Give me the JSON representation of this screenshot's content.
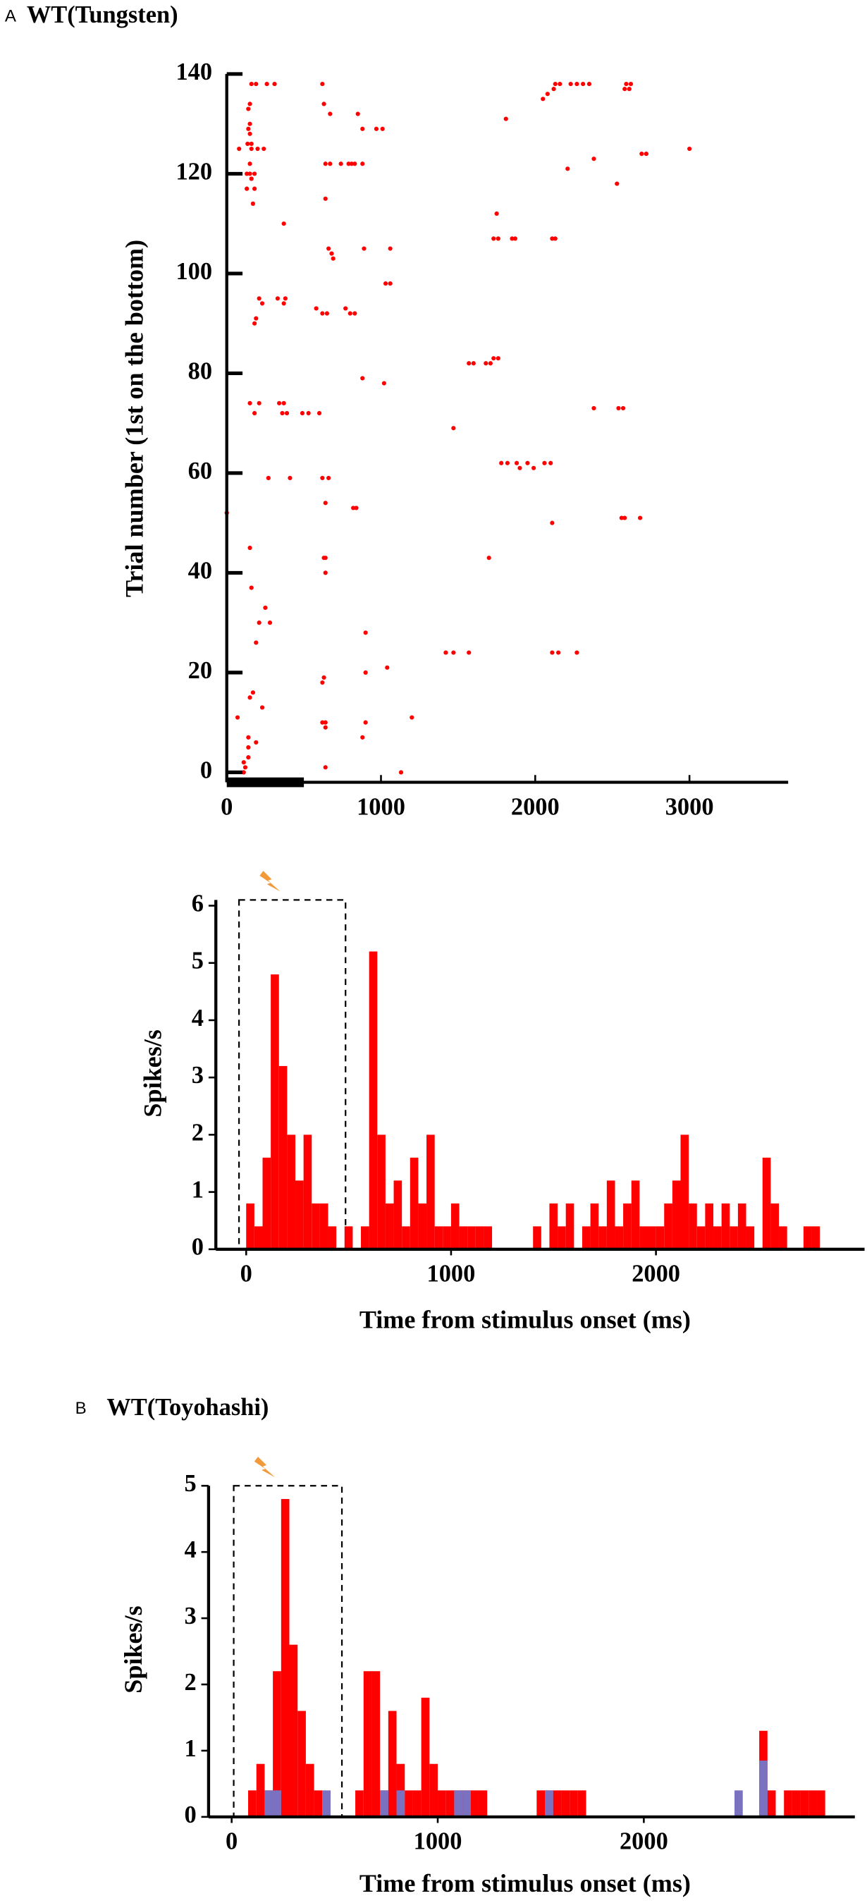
{
  "chart_data": [
    {
      "type": "scatter",
      "panel": "A",
      "title": "WT(Tungsten)",
      "y_label": "Trial number (1st on the bottom)",
      "color": "#ff0000",
      "xlim": [
        0,
        3640
      ],
      "ylim": [
        -2,
        140
      ],
      "xticks": [
        0,
        1000,
        2000,
        3000
      ],
      "yticks": [
        0,
        20,
        40,
        60,
        80,
        100,
        120,
        140
      ],
      "stimulus_window": [
        0,
        500
      ],
      "x": [
        160,
        190,
        260,
        310,
        620,
        2130,
        2160,
        2230,
        2270,
        2310,
        2350,
        2590,
        2620,
        2120,
        2580,
        2610,
        2080,
        2050,
        150,
        630,
        140,
        670,
        850,
        1810,
        150,
        140,
        880,
        970,
        1010,
        150,
        135,
        160,
        80,
        160,
        200,
        240,
        3000,
        2690,
        2720,
        2380,
        150,
        640,
        670,
        740,
        790,
        810,
        830,
        880,
        2210,
        130,
        150,
        180,
        160,
        2530,
        130,
        180,
        640,
        170,
        1750,
        370,
        1730,
        1760,
        1850,
        1870,
        2110,
        2130,
        660,
        890,
        1060,
        680,
        690,
        1030,
        1060,
        210,
        330,
        380,
        230,
        370,
        580,
        770,
        620,
        650,
        800,
        830,
        190,
        180,
        1730,
        1760,
        1570,
        1600,
        1680,
        1710,
        880,
        1020,
        150,
        210,
        340,
        370,
        2380,
        2540,
        2570,
        180,
        360,
        390,
        490,
        530,
        600,
        1470,
        1780,
        1820,
        1880,
        1950,
        2060,
        2100,
        1900,
        1990,
        270,
        410,
        620,
        660,
        640,
        820,
        840,
        0,
        2560,
        2580,
        2680,
        2110,
        150,
        630,
        640,
        1700,
        640,
        160,
        250,
        210,
        280,
        900,
        190,
        1420,
        1470,
        1570,
        2110,
        2150,
        2270,
        1040,
        900,
        630,
        620,
        170,
        150,
        230,
        70,
        1200,
        620,
        640,
        900,
        640,
        140,
        880,
        190,
        140,
        140,
        110,
        120,
        640,
        110,
        1130
      ],
      "values": [
        138,
        138,
        138,
        138,
        138,
        138,
        138,
        138,
        138,
        138,
        138,
        138,
        138,
        137,
        137,
        137,
        136,
        135,
        134,
        134,
        133,
        132,
        132,
        131,
        130,
        129,
        129,
        129,
        129,
        128,
        126,
        126,
        125,
        125,
        125,
        125,
        125,
        124,
        124,
        123,
        122,
        122,
        122,
        122,
        122,
        122,
        122,
        122,
        121,
        120,
        120,
        120,
        119,
        118,
        117,
        117,
        115,
        114,
        112,
        110,
        107,
        107,
        107,
        107,
        107,
        107,
        105,
        105,
        105,
        104,
        103,
        98,
        98,
        95,
        95,
        95,
        94,
        94,
        93,
        93,
        92,
        92,
        92,
        92,
        91,
        90,
        83,
        83,
        82,
        82,
        82,
        82,
        79,
        78,
        74,
        74,
        74,
        74,
        73,
        73,
        73,
        72,
        72,
        72,
        72,
        72,
        72,
        69,
        62,
        62,
        62,
        62,
        62,
        62,
        61,
        61,
        59,
        59,
        59,
        59,
        54,
        53,
        53,
        52,
        51,
        51,
        51,
        50,
        45,
        43,
        43,
        43,
        40,
        37,
        33,
        30,
        30,
        28,
        26,
        24,
        24,
        24,
        24,
        24,
        24,
        21,
        20,
        19,
        18,
        16,
        15,
        13,
        11,
        11,
        10,
        10,
        10,
        9,
        7,
        7,
        6,
        5,
        3,
        2,
        1,
        1,
        0,
        0
      ]
    },
    {
      "type": "histogram",
      "y_label": "Spikes/s",
      "x_label": "Time from stimulus onset (ms)",
      "xlim": [
        -148,
        3018
      ],
      "ylim": [
        0,
        6.1
      ],
      "xticks": [
        0,
        1000,
        2000
      ],
      "yticks": [
        0,
        1,
        2,
        3,
        4,
        5,
        6
      ],
      "stimulus_window": [
        -35,
        485
      ],
      "bins": [
        0,
        40,
        80,
        120,
        160,
        200,
        240,
        280,
        320,
        360,
        400,
        440,
        480,
        520,
        560,
        600,
        640,
        680,
        720,
        760,
        800,
        840,
        880,
        920,
        960,
        1000,
        1040,
        1080,
        1120,
        1160,
        1200,
        1240,
        1280,
        1320,
        1360,
        1400,
        1440,
        1480,
        1520,
        1560,
        1600,
        1640,
        1680,
        1720,
        1760,
        1800,
        1840,
        1880,
        1920,
        1960,
        2000,
        2040,
        2080,
        2120,
        2160,
        2200,
        2240,
        2280,
        2320,
        2360,
        2400,
        2440,
        2480,
        2520,
        2560,
        2600,
        2640,
        2680,
        2720,
        2760,
        2800
      ],
      "series": [
        {
          "color": "#ff0000",
          "values": [
            0.8,
            0.4,
            1.6,
            4.8,
            3.2,
            2.0,
            1.2,
            2.0,
            0.8,
            0.8,
            0.4,
            0,
            0.4,
            0,
            0.4,
            5.2,
            2.0,
            0.8,
            1.2,
            0.4,
            1.6,
            0.8,
            2.0,
            0.4,
            0.4,
            0.8,
            0.4,
            0.4,
            0.4,
            0.4,
            0,
            0,
            0,
            0,
            0,
            0.4,
            0,
            0.8,
            0.4,
            0.8,
            0,
            0.4,
            0.8,
            0.4,
            1.2,
            0.4,
            0.8,
            1.2,
            0.4,
            0.4,
            0.4,
            0.8,
            1.2,
            2.0,
            0.8,
            0.4,
            0.8,
            0.4,
            0.8,
            0.4,
            0.8,
            0.4,
            0,
            1.6,
            0.8,
            0.4,
            0,
            0,
            0.4,
            0.4
          ]
        }
      ]
    },
    {
      "type": "histogram",
      "panel": "B",
      "title": "WT(Toyohashi)",
      "y_label": "Spikes/s",
      "x_label": "Time from stimulus onset (ms)",
      "xlim": [
        -112,
        3024
      ],
      "ylim": [
        0,
        5
      ],
      "xticks": [
        0,
        1000,
        2000
      ],
      "yticks": [
        0,
        1,
        2,
        3,
        4,
        5
      ],
      "stimulus_window": [
        10,
        535
      ],
      "bins": [
        0,
        40,
        80,
        120,
        160,
        200,
        240,
        280,
        320,
        360,
        400,
        440,
        480,
        520,
        560,
        600,
        640,
        680,
        720,
        760,
        800,
        840,
        880,
        920,
        960,
        1000,
        1040,
        1080,
        1120,
        1160,
        1200,
        1240,
        1280,
        1320,
        1360,
        1400,
        1440,
        1480,
        1520,
        1560,
        1600,
        1640,
        1680,
        1720,
        1760,
        1800,
        1840,
        1880,
        1920,
        1960,
        2000,
        2040,
        2080,
        2120,
        2160,
        2200,
        2240,
        2280,
        2320,
        2360,
        2400,
        2440,
        2480,
        2520,
        2560,
        2600,
        2640,
        2680,
        2720,
        2760,
        2800,
        2840,
        2880
      ],
      "series": [
        {
          "color": "#ff0000",
          "values": [
            0,
            0,
            0.4,
            0.8,
            0.4,
            2.2,
            4.8,
            2.6,
            1.6,
            0.8,
            0.4,
            0,
            0,
            0,
            0,
            0.4,
            2.2,
            2.2,
            0.4,
            1.6,
            0.8,
            0.4,
            0.4,
            1.8,
            0.8,
            0.4,
            0.4,
            0.4,
            0.4,
            0.4,
            0.4,
            0,
            0,
            0,
            0,
            0,
            0,
            0.4,
            0.4,
            0.4,
            0.4,
            0.4,
            0.4,
            0,
            0,
            0,
            0,
            0,
            0,
            0,
            0,
            0,
            0,
            0,
            0,
            0,
            0,
            0,
            0,
            0,
            0,
            0,
            0,
            0,
            1.3,
            0.4,
            0,
            0.4,
            0.4,
            0.4,
            0.4,
            0.4
          ]
        },
        {
          "color": "#7a72c0",
          "values": [
            0,
            0,
            0,
            0,
            0.4,
            0.4,
            0,
            0,
            0,
            0,
            0,
            0.4,
            0,
            0,
            0,
            0,
            0,
            0,
            0.4,
            0,
            0.4,
            0,
            0,
            0,
            0,
            0,
            0,
            0.4,
            0.4,
            0,
            0,
            0,
            0,
            0,
            0,
            0,
            0,
            0,
            0.4,
            0,
            0,
            0,
            0,
            0,
            0,
            0,
            0,
            0,
            0,
            0,
            0,
            0,
            0,
            0,
            0,
            0,
            0,
            0,
            0,
            0,
            0,
            0.4,
            0,
            0,
            0.85,
            0,
            0,
            0,
            0,
            0,
            0,
            0
          ]
        }
      ]
    }
  ]
}
